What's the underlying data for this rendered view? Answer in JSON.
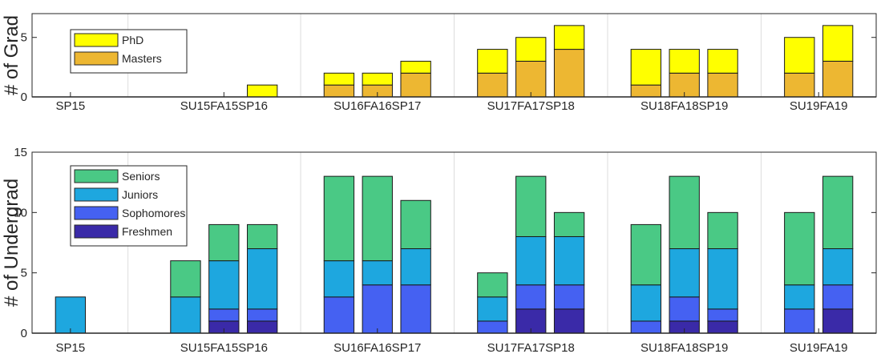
{
  "chart_data": [
    {
      "type": "bar",
      "stacked": true,
      "title": "",
      "xlabel": "",
      "ylabel": "# of Grad",
      "ylim": [
        0,
        7
      ],
      "yticks": [
        0,
        5
      ],
      "xticklabels": [
        "SP15",
        "SU15FA15SP16",
        "SU16FA16SP17",
        "SU17FA17SP18",
        "SU18FA18SP19",
        "SU19FA19"
      ],
      "categories": [
        "SP15",
        "SU15",
        "FA15",
        "SP16",
        "SU16",
        "FA16",
        "SP17",
        "SU17",
        "FA17",
        "SP18",
        "SU18",
        "FA18",
        "SP19",
        "SU19",
        "FA19"
      ],
      "grid": "x",
      "legend_position": "top-left",
      "series": [
        {
          "name": "Masters",
          "color": "#EDB732",
          "values": [
            0,
            0,
            0,
            0,
            1,
            1,
            2,
            2,
            3,
            4,
            1,
            2,
            2,
            2,
            3
          ]
        },
        {
          "name": "PhD",
          "color": "#FFFF00",
          "values": [
            0,
            0,
            0,
            1,
            1,
            1,
            1,
            2,
            2,
            2,
            3,
            2,
            2,
            3,
            3
          ]
        }
      ]
    },
    {
      "type": "bar",
      "stacked": true,
      "title": "",
      "xlabel": "",
      "ylabel": "# of Undergrad",
      "ylim": [
        0,
        15
      ],
      "yticks": [
        0,
        5,
        10,
        15
      ],
      "xticklabels": [
        "SP15",
        "SU15FA15SP16",
        "SU16FA16SP17",
        "SU17FA17SP18",
        "SU18FA18SP19",
        "SU19FA19"
      ],
      "categories": [
        "SP15",
        "SU15",
        "FA15",
        "SP16",
        "SU16",
        "FA16",
        "SP17",
        "SU17",
        "FA17",
        "SP18",
        "SU18",
        "FA18",
        "SP19",
        "SU19",
        "FA19"
      ],
      "grid": "x",
      "legend_position": "top-left",
      "series": [
        {
          "name": "Freshmen",
          "color": "#3A2AA8",
          "values": [
            0,
            0,
            1,
            1,
            0,
            0,
            0,
            0,
            2,
            2,
            0,
            1,
            1,
            0,
            2
          ]
        },
        {
          "name": "Sophomores",
          "color": "#4561F2",
          "values": [
            0,
            0,
            1,
            1,
            3,
            4,
            4,
            1,
            2,
            2,
            1,
            2,
            1,
            2,
            2
          ]
        },
        {
          "name": "Juniors",
          "color": "#1EA7DF",
          "values": [
            3,
            3,
            4,
            5,
            3,
            2,
            3,
            2,
            4,
            4,
            3,
            4,
            5,
            2,
            3
          ]
        },
        {
          "name": "Seniors",
          "color": "#4AC985",
          "values": [
            0,
            3,
            3,
            2,
            7,
            7,
            4,
            2,
            5,
            2,
            5,
            6,
            3,
            6,
            6
          ]
        }
      ]
    }
  ]
}
